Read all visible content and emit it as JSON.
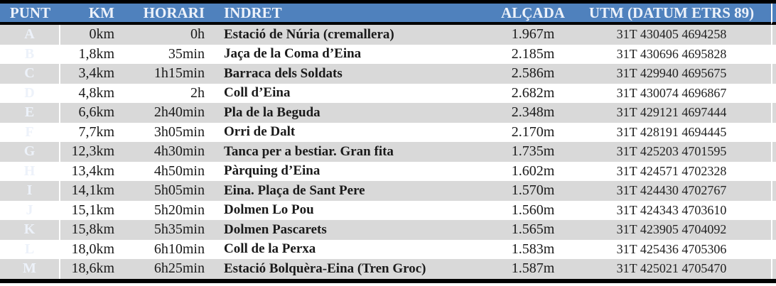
{
  "colors": {
    "header_bg": "#4f81bd",
    "punt_column_bg": "#4f81bd",
    "header_text": "#edf2fa",
    "row_alt_bg": "#d9d9d9",
    "row_bg": "#ffffff",
    "border": "#000000"
  },
  "table": {
    "columns": [
      {
        "key": "punt",
        "label": "PUNT"
      },
      {
        "key": "km",
        "label": "KM"
      },
      {
        "key": "horari",
        "label": "HORARI"
      },
      {
        "key": "indret",
        "label": "INDRET"
      },
      {
        "key": "alcada",
        "label": "ALÇADA"
      },
      {
        "key": "utm",
        "label": "UTM (DATUM ETRS 89)"
      }
    ],
    "rows": [
      {
        "punt": "A",
        "km": "0km",
        "horari": "0h",
        "indret": "Estació de Núria (cremallera)",
        "alcada": "1.967m",
        "utm": "31T 430405 4694258"
      },
      {
        "punt": "B",
        "km": "1,8km",
        "horari": "35min",
        "indret": "Jaça de la Coma d’Eina",
        "alcada": "2.185m",
        "utm": "31T 430696 4695828"
      },
      {
        "punt": "C",
        "km": "3,4km",
        "horari": "1h15min",
        "indret": "Barraca dels Soldats",
        "alcada": "2.586m",
        "utm": "31T 429940 4695675"
      },
      {
        "punt": "D",
        "km": "4,8km",
        "horari": "2h",
        "indret": "Coll d’Eina",
        "alcada": "2.682m",
        "utm": "31T 430074 4696867"
      },
      {
        "punt": "E",
        "km": "6,6km",
        "horari": "2h40min",
        "indret": "Pla de la Beguda",
        "alcada": "2.348m",
        "utm": "31T 429121 4697444"
      },
      {
        "punt": "F",
        "km": "7,7km",
        "horari": "3h05min",
        "indret": "Orri de Dalt",
        "alcada": "2.170m",
        "utm": "31T 428191 4694445"
      },
      {
        "punt": "G",
        "km": "12,3km",
        "horari": "4h30min",
        "indret": "Tanca per a bestiar. Gran fita",
        "alcada": "1.735m",
        "utm": "31T 425203 4701595"
      },
      {
        "punt": "H",
        "km": "13,4km",
        "horari": "4h50min",
        "indret": "Pàrquing d’Eina",
        "alcada": "1.602m",
        "utm": "31T 424571 4702328"
      },
      {
        "punt": "I",
        "km": "14,1km",
        "horari": "5h05min",
        "indret": "Eina. Plaça de Sant Pere",
        "alcada": "1.570m",
        "utm": "31T 424430 4702767"
      },
      {
        "punt": "J",
        "km": "15,1km",
        "horari": "5h20min",
        "indret": "Dolmen Lo Pou",
        "alcada": "1.560m",
        "utm": "31T 424343 4703610"
      },
      {
        "punt": "K",
        "km": "15,8km",
        "horari": "5h35min",
        "indret": "Dolmen Pascarets",
        "alcada": "1.565m",
        "utm": "31T 423905 4704092"
      },
      {
        "punt": "L",
        "km": "18,0km",
        "horari": "6h10min",
        "indret": "Coll de la Perxa",
        "alcada": "1.583m",
        "utm": "31T 425436 4705306"
      },
      {
        "punt": "M",
        "km": "18,6km",
        "horari": "6h25min",
        "indret": "Estació Bolquèra-Eina (Tren Groc)",
        "alcada": "1.587m",
        "utm": "31T 425021 4705470"
      }
    ]
  }
}
